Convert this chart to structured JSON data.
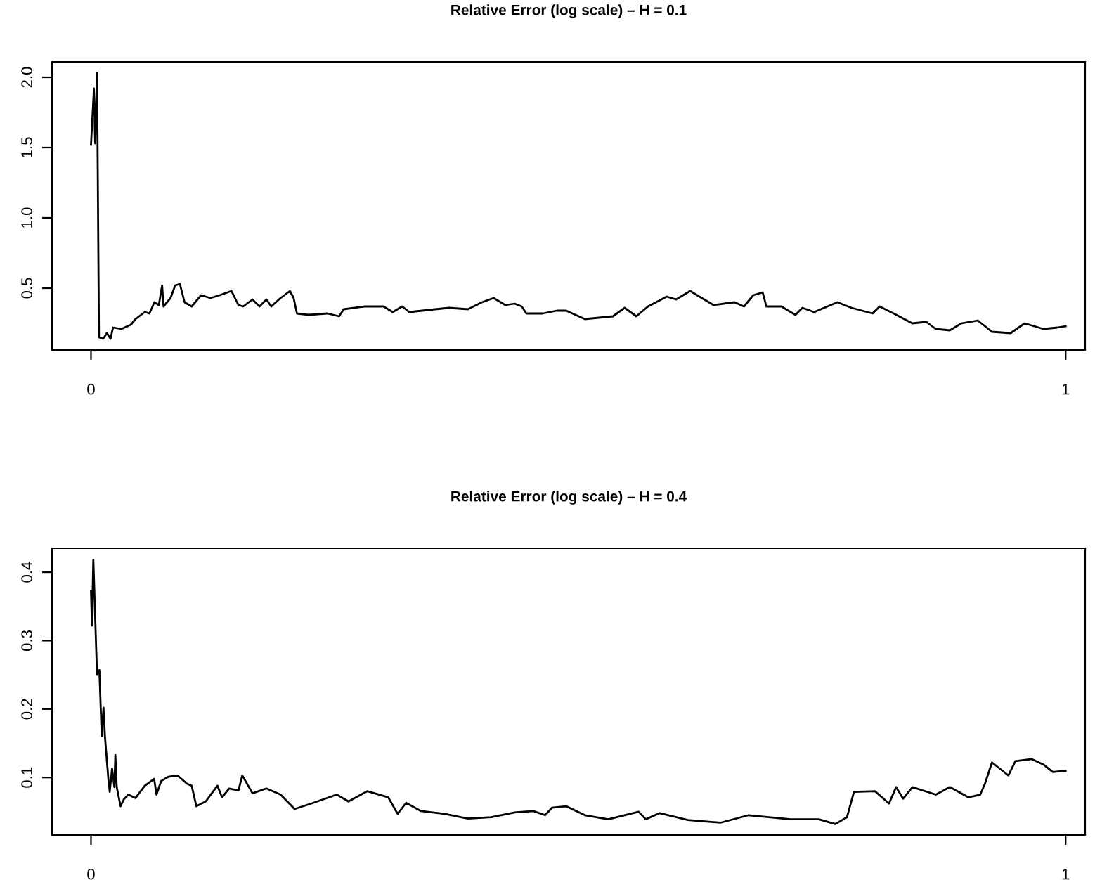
{
  "chart_data": [
    {
      "type": "line",
      "title": "Relative Error (log scale) – H = 0.1",
      "xlim": [
        -0.04,
        1.02
      ],
      "xticks": [
        0,
        1
      ],
      "ylim": [
        0.06,
        2.11
      ],
      "yticks": [
        0.5,
        {
          "value": 1,
          "label": "1.0"
        },
        1.5,
        {
          "value": 2,
          "label": "2.0"
        }
      ],
      "grid": false,
      "legend": false,
      "series": [
        {
          "color": "#000000",
          "x": [
            0,
            0.003,
            0.0043,
            0.0062,
            0.0082,
            0.0125,
            0.0163,
            0.02,
            0.0226,
            0.0312,
            0.0408,
            0.0456,
            0.0552,
            0.06,
            0.065,
            0.0696,
            0.073,
            0.0744,
            0.0816,
            0.0864,
            0.0912,
            0.096,
            0.1033,
            0.1129,
            0.1225,
            0.1321,
            0.1441,
            0.1513,
            0.1561,
            0.1657,
            0.1729,
            0.18,
            0.1849,
            0.1945,
            0.2041,
            0.2079,
            0.2113,
            0.2233,
            0.2425,
            0.2545,
            0.2593,
            0.2809,
            0.3001,
            0.3097,
            0.3193,
            0.3265,
            0.353,
            0.3675,
            0.3867,
            0.4011,
            0.4131,
            0.4251,
            0.4347,
            0.4419,
            0.4467,
            0.4635,
            0.4779,
            0.4875,
            0.5067,
            0.5355,
            0.5475,
            0.5595,
            0.5715,
            0.5907,
            0.6003,
            0.6147,
            0.6267,
            0.6387,
            0.6603,
            0.6699,
            0.6795,
            0.6891,
            0.6929,
            0.7083,
            0.7227,
            0.7299,
            0.7419,
            0.7659,
            0.7803,
            0.8019,
            0.8091,
            0.8235,
            0.8427,
            0.8571,
            0.8667,
            0.8811,
            0.8931,
            0.9099,
            0.9243,
            0.9435,
            0.9579,
            0.9771,
            0.9915,
            1.0
          ],
          "values": [
            1.52,
            1.92,
            1.53,
            2.03,
            0.15,
            0.14,
            0.18,
            0.14,
            0.22,
            0.21,
            0.24,
            0.28,
            0.33,
            0.32,
            0.4,
            0.38,
            0.52,
            0.37,
            0.43,
            0.52,
            0.53,
            0.4,
            0.37,
            0.45,
            0.43,
            0.45,
            0.48,
            0.38,
            0.37,
            0.42,
            0.37,
            0.42,
            0.37,
            0.43,
            0.48,
            0.43,
            0.32,
            0.31,
            0.32,
            0.3,
            0.35,
            0.37,
            0.37,
            0.33,
            0.37,
            0.33,
            0.35,
            0.36,
            0.35,
            0.4,
            0.43,
            0.38,
            0.39,
            0.37,
            0.32,
            0.32,
            0.34,
            0.34,
            0.28,
            0.3,
            0.36,
            0.3,
            0.37,
            0.44,
            0.42,
            0.48,
            0.43,
            0.38,
            0.4,
            0.37,
            0.45,
            0.47,
            0.37,
            0.37,
            0.31,
            0.36,
            0.33,
            0.4,
            0.36,
            0.32,
            0.37,
            0.32,
            0.25,
            0.26,
            0.21,
            0.2,
            0.25,
            0.27,
            0.19,
            0.18,
            0.25,
            0.21,
            0.22,
            0.23
          ]
        }
      ]
    },
    {
      "type": "line",
      "title": "Relative Error (log scale) – H = 0.4",
      "xlim": [
        -0.04,
        1.02
      ],
      "xticks": [
        0,
        1
      ],
      "ylim": [
        0.016,
        0.435
      ],
      "yticks": [
        0.1,
        0.2,
        0.3,
        0.4
      ],
      "grid": false,
      "legend": false,
      "series": [
        {
          "color": "#000000",
          "x": [
            0,
            0.001,
            0.0024,
            0.0062,
            0.0086,
            0.011,
            0.0128,
            0.0144,
            0.0178,
            0.0192,
            0.0216,
            0.024,
            0.025,
            0.0264,
            0.0303,
            0.0336,
            0.0384,
            0.0456,
            0.0552,
            0.0648,
            0.0672,
            0.072,
            0.0792,
            0.0888,
            0.0985,
            0.1033,
            0.1081,
            0.1177,
            0.1297,
            0.1345,
            0.1417,
            0.1513,
            0.1552,
            0.1657,
            0.18,
            0.1945,
            0.2089,
            0.2281,
            0.2522,
            0.2642,
            0.2834,
            0.305,
            0.3146,
            0.3233,
            0.3386,
            0.3627,
            0.3867,
            0.4107,
            0.4347,
            0.4539,
            0.4659,
            0.4731,
            0.4875,
            0.5067,
            0.5307,
            0.5619,
            0.5691,
            0.5835,
            0.6123,
            0.6459,
            0.6747,
            0.7179,
            0.7468,
            0.7636,
            0.7756,
            0.7828,
            0.8044,
            0.8188,
            0.826,
            0.8332,
            0.8428,
            0.8668,
            0.8812,
            0.9004,
            0.9124,
            0.9172,
            0.9244,
            0.9412,
            0.9484,
            0.9652,
            0.9772,
            0.9868,
            1.0
          ],
          "values": [
            0.373,
            0.322,
            0.418,
            0.25,
            0.257,
            0.161,
            0.202,
            0.158,
            0.098,
            0.079,
            0.113,
            0.086,
            0.133,
            0.086,
            0.058,
            0.068,
            0.075,
            0.07,
            0.088,
            0.098,
            0.075,
            0.095,
            0.101,
            0.103,
            0.091,
            0.088,
            0.058,
            0.065,
            0.088,
            0.071,
            0.084,
            0.081,
            0.103,
            0.077,
            0.084,
            0.075,
            0.054,
            0.063,
            0.075,
            0.065,
            0.08,
            0.071,
            0.047,
            0.063,
            0.051,
            0.047,
            0.04,
            0.042,
            0.049,
            0.051,
            0.045,
            0.056,
            0.058,
            0.045,
            0.039,
            0.05,
            0.039,
            0.048,
            0.038,
            0.034,
            0.045,
            0.039,
            0.039,
            0.032,
            0.042,
            0.079,
            0.08,
            0.062,
            0.086,
            0.069,
            0.086,
            0.075,
            0.086,
            0.071,
            0.075,
            0.091,
            0.122,
            0.103,
            0.124,
            0.127,
            0.119,
            0.108,
            0.11
          ]
        }
      ]
    }
  ]
}
